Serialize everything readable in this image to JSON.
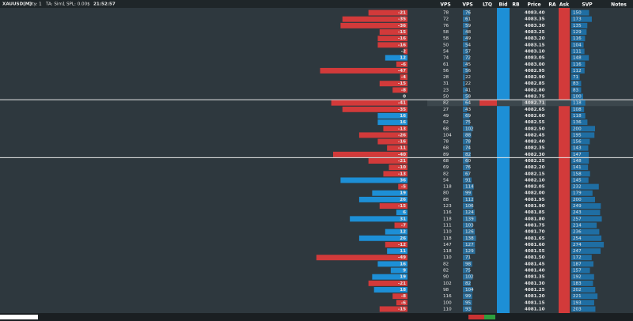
{
  "toolbar": {
    "symbol": "XAUUSD[M]",
    "qty": "Qty: 1",
    "account": "TA: Sim1",
    "pnl": "SPL: 0.00$",
    "time": "21:52:57"
  },
  "columns": {
    "vps_sell": "VPS",
    "vps_buy": "VPS",
    "ltq": "LTQ",
    "bid": "Bid",
    "rb": "RB",
    "price": "Price",
    "ra": "RA",
    "ask": "Ask",
    "svp": "SVP",
    "notes": "Notes"
  },
  "rows": [
    {
      "price": "4083.40",
      "delta": -21,
      "vps_sell": 78,
      "vps_buy": 76,
      "svp": 150
    },
    {
      "price": "4083.35",
      "delta": -35,
      "vps_sell": 72,
      "vps_buy": 61,
      "svp": 173
    },
    {
      "price": "4083.30",
      "delta": -36,
      "vps_sell": 76,
      "vps_buy": 59,
      "svp": 135
    },
    {
      "price": "4083.25",
      "delta": -15,
      "vps_sell": 58,
      "vps_buy": 48,
      "svp": 129
    },
    {
      "price": "4083.20",
      "delta": -16,
      "vps_sell": 58,
      "vps_buy": 49,
      "svp": 116
    },
    {
      "price": "4083.15",
      "delta": -16,
      "vps_sell": 50,
      "vps_buy": 54,
      "svp": 104
    },
    {
      "price": "4083.10",
      "delta": -2,
      "vps_sell": 54,
      "vps_buy": 57,
      "svp": 111
    },
    {
      "price": "4083.05",
      "delta": 12,
      "vps_sell": 74,
      "vps_buy": 72,
      "svp": 148
    },
    {
      "price": "4083.00",
      "delta": -6,
      "vps_sell": 61,
      "vps_buy": 45,
      "svp": 116
    },
    {
      "price": "4082.95",
      "delta": -47,
      "vps_sell": 56,
      "vps_buy": 56,
      "svp": 112
    },
    {
      "price": "4082.90",
      "delta": -4,
      "vps_sell": 28,
      "vps_buy": 22,
      "svp": 71
    },
    {
      "price": "4082.85",
      "delta": -15,
      "vps_sell": 31,
      "vps_buy": 22,
      "svp": 83
    },
    {
      "price": "4082.80",
      "delta": -8,
      "vps_sell": 23,
      "vps_buy": 41,
      "svp": 83
    },
    {
      "price": "4082.75",
      "delta": 0,
      "vps_sell": 50,
      "vps_buy": 58,
      "svp": 100
    },
    {
      "price": "4082.71",
      "delta": -41,
      "vps_sell": 82,
      "vps_buy": 64,
      "svp": 118,
      "highlight": true
    },
    {
      "price": "4082.65",
      "delta": -35,
      "vps_sell": 27,
      "vps_buy": 43,
      "svp": 108
    },
    {
      "price": "4082.60",
      "delta": 16,
      "vps_sell": 49,
      "vps_buy": 69,
      "svp": 118
    },
    {
      "price": "4082.55",
      "delta": 16,
      "vps_sell": 62,
      "vps_buy": 75,
      "svp": 136
    },
    {
      "price": "4082.50",
      "delta": -13,
      "vps_sell": 68,
      "vps_buy": 102,
      "svp": 200
    },
    {
      "price": "4082.45",
      "delta": -26,
      "vps_sell": 104,
      "vps_buy": 88,
      "svp": 195
    },
    {
      "price": "4082.40",
      "delta": -16,
      "vps_sell": 78,
      "vps_buy": 78,
      "svp": 156
    },
    {
      "price": "4082.35",
      "delta": -11,
      "vps_sell": 68,
      "vps_buy": 74,
      "svp": 143
    },
    {
      "price": "4082.30",
      "delta": -40,
      "vps_sell": 89,
      "vps_buy": 82,
      "svp": 147
    },
    {
      "price": "4082.25",
      "delta": -21,
      "vps_sell": 68,
      "vps_buy": 60,
      "svp": 148
    },
    {
      "price": "4082.20",
      "delta": -10,
      "vps_sell": 69,
      "vps_buy": 76,
      "svp": 141
    },
    {
      "price": "4082.15",
      "delta": -13,
      "vps_sell": 82,
      "vps_buy": 67,
      "svp": 158
    },
    {
      "price": "4082.10",
      "delta": 36,
      "vps_sell": 54,
      "vps_buy": 91,
      "svp": 145
    },
    {
      "price": "4082.05",
      "delta": -5,
      "vps_sell": 118,
      "vps_buy": 114,
      "svp": 232
    },
    {
      "price": "4082.00",
      "delta": 19,
      "vps_sell": 80,
      "vps_buy": 99,
      "svp": 179
    },
    {
      "price": "4081.95",
      "delta": 26,
      "vps_sell": 88,
      "vps_buy": 112,
      "svp": 200
    },
    {
      "price": "4081.90",
      "delta": -15,
      "vps_sell": 123,
      "vps_buy": 106,
      "svp": 249
    },
    {
      "price": "4081.85",
      "delta": 6,
      "vps_sell": 116,
      "vps_buy": 124,
      "svp": 243
    },
    {
      "price": "4081.80",
      "delta": 31,
      "vps_sell": 118,
      "vps_buy": 139,
      "svp": 257
    },
    {
      "price": "4081.75",
      "delta": -7,
      "vps_sell": 111,
      "vps_buy": 103,
      "svp": 214
    },
    {
      "price": "4081.70",
      "delta": 12,
      "vps_sell": 110,
      "vps_buy": 126,
      "svp": 236
    },
    {
      "price": "4081.65",
      "delta": 26,
      "vps_sell": 118,
      "vps_buy": 138,
      "svp": 254
    },
    {
      "price": "4081.60",
      "delta": -12,
      "vps_sell": 147,
      "vps_buy": 127,
      "svp": 274
    },
    {
      "price": "4081.55",
      "delta": 11,
      "vps_sell": 118,
      "vps_buy": 129,
      "svp": 247
    },
    {
      "price": "4081.50",
      "delta": -49,
      "vps_sell": 110,
      "vps_buy": 71,
      "svp": 172
    },
    {
      "price": "4081.45",
      "delta": 16,
      "vps_sell": 82,
      "vps_buy": 98,
      "svp": 187
    },
    {
      "price": "4081.40",
      "delta": 9,
      "vps_sell": 82,
      "vps_buy": 75,
      "svp": 157
    },
    {
      "price": "4081.35",
      "delta": 19,
      "vps_sell": 90,
      "vps_buy": 102,
      "svp": 192
    },
    {
      "price": "4081.30",
      "delta": -21,
      "vps_sell": 102,
      "vps_buy": 82,
      "svp": 183
    },
    {
      "price": "4081.25",
      "delta": 18,
      "vps_sell": 98,
      "vps_buy": 104,
      "svp": 202
    },
    {
      "price": "4081.20",
      "delta": -8,
      "vps_sell": 116,
      "vps_buy": 99,
      "svp": 221
    },
    {
      "price": "4081.15",
      "delta": -6,
      "vps_sell": 100,
      "vps_buy": 95,
      "svp": 193
    },
    {
      "price": "4081.10",
      "delta": -15,
      "vps_sell": 110,
      "vps_buy": 93,
      "svp": 203
    }
  ]
}
